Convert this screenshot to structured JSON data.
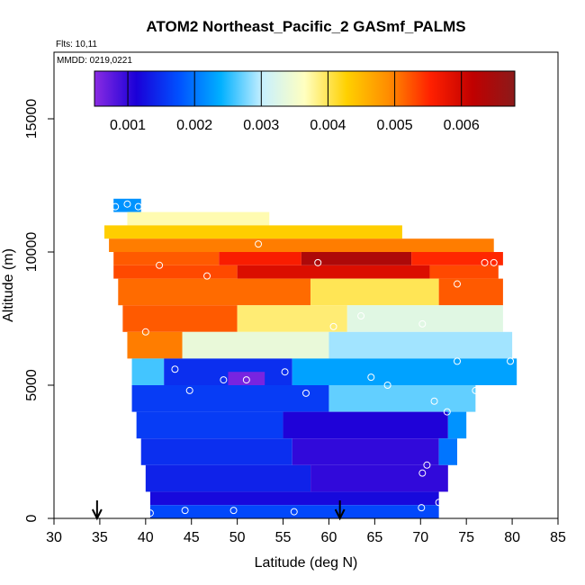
{
  "chart_data": {
    "type": "heatmap",
    "title": "ATOM2 Northeast_Pacific_2 GASmf_PALMS",
    "flights_label": "Flts: 10,11",
    "dates_label": "MMDD: 0219,0221",
    "xlabel": "Latitude (deg N)",
    "ylabel": "Altitude (m)",
    "xlim": [
      30,
      85
    ],
    "ylim": [
      0,
      17500
    ],
    "x_ticks": [
      30,
      35,
      40,
      45,
      50,
      55,
      60,
      65,
      70,
      75,
      80,
      85
    ],
    "y_ticks": [
      0,
      5000,
      10000,
      15000
    ],
    "colorbar": {
      "range": [
        0.0005,
        0.0068
      ],
      "ticks": [
        0.001,
        0.002,
        0.003,
        0.004,
        0.005,
        0.006
      ],
      "tick_labels": [
        "0.001",
        "0.002",
        "0.003",
        "0.004",
        "0.005",
        "0.006"
      ],
      "colors": [
        "#8a2be2",
        "#1a00d8",
        "#0050ff",
        "#00b0ff",
        "#c8f0ff",
        "#ffffc0",
        "#ffd000",
        "#ff8c00",
        "#ff2000",
        "#c00000",
        "#8b1a1a"
      ]
    },
    "arrows_x": [
      34.7,
      61.2
    ],
    "regions": [
      {
        "y": [
          11500,
          12000
        ],
        "x": [
          36.5,
          39.5
        ],
        "value": 0.0022
      },
      {
        "y": [
          11000,
          11500
        ],
        "x": [
          38.0,
          53.5
        ],
        "value": 0.0037
      },
      {
        "y": [
          10500,
          11000
        ],
        "x": [
          35.5,
          68.0
        ],
        "value": 0.0043
      },
      {
        "y": [
          10000,
          10500
        ],
        "x": [
          36.0,
          78.0
        ],
        "value": 0.005
      },
      {
        "y": [
          9500,
          10000
        ],
        "x": [
          36.5,
          48.0
        ],
        "value": 0.0052
      },
      {
        "y": [
          9500,
          10000
        ],
        "x": [
          48.0,
          57.0
        ],
        "value": 0.0056
      },
      {
        "y": [
          9500,
          10000
        ],
        "x": [
          57.0,
          69.0
        ],
        "value": 0.0064
      },
      {
        "y": [
          9500,
          10000
        ],
        "x": [
          69.0,
          79.0
        ],
        "value": 0.0055
      },
      {
        "y": [
          9000,
          9500
        ],
        "x": [
          36.5,
          50.0
        ],
        "value": 0.0053
      },
      {
        "y": [
          9000,
          9500
        ],
        "x": [
          50.0,
          71.0
        ],
        "value": 0.0059
      },
      {
        "y": [
          9000,
          9500
        ],
        "x": [
          71.0,
          78.5
        ],
        "value": 0.0053
      },
      {
        "y": [
          8000,
          9000
        ],
        "x": [
          37.0,
          58.0
        ],
        "value": 0.0051
      },
      {
        "y": [
          8000,
          9000
        ],
        "x": [
          58.0,
          72.0
        ],
        "value": 0.004
      },
      {
        "y": [
          8000,
          9000
        ],
        "x": [
          72.0,
          79.0
        ],
        "value": 0.0052
      },
      {
        "y": [
          7000,
          8000
        ],
        "x": [
          37.5,
          50.0
        ],
        "value": 0.0052
      },
      {
        "y": [
          7000,
          8000
        ],
        "x": [
          50.0,
          62.0
        ],
        "value": 0.0039
      },
      {
        "y": [
          7000,
          8000
        ],
        "x": [
          62.0,
          79.0
        ],
        "value": 0.0033
      },
      {
        "y": [
          6000,
          7000
        ],
        "x": [
          38.0,
          44.0
        ],
        "value": 0.005
      },
      {
        "y": [
          6000,
          7000
        ],
        "x": [
          44.0,
          60.0
        ],
        "value": 0.0034
      },
      {
        "y": [
          6000,
          7000
        ],
        "x": [
          60.0,
          80.0
        ],
        "value": 0.0029
      },
      {
        "y": [
          5000,
          6000
        ],
        "x": [
          38.5,
          42.0
        ],
        "value": 0.0026
      },
      {
        "y": [
          5000,
          6000
        ],
        "x": [
          42.0,
          56.0
        ],
        "value": 0.0015
      },
      {
        "y": [
          5000,
          6000
        ],
        "x": [
          56.0,
          80.5
        ],
        "value": 0.0023
      },
      {
        "y": [
          5000,
          5500
        ],
        "x": [
          49.0,
          53.0
        ],
        "value": 0.0006
      },
      {
        "y": [
          4000,
          5000
        ],
        "x": [
          38.5,
          60.0
        ],
        "value": 0.0016
      },
      {
        "y": [
          4000,
          5000
        ],
        "x": [
          60.0,
          76.0
        ],
        "value": 0.0027
      },
      {
        "y": [
          3000,
          4000
        ],
        "x": [
          39.0,
          55.0
        ],
        "value": 0.0016
      },
      {
        "y": [
          3000,
          4000
        ],
        "x": [
          55.0,
          73.0
        ],
        "value": 0.0011
      },
      {
        "y": [
          3000,
          4000
        ],
        "x": [
          73.0,
          75.0
        ],
        "value": 0.0022
      },
      {
        "y": [
          2000,
          3000
        ],
        "x": [
          39.5,
          56.0
        ],
        "value": 0.0015
      },
      {
        "y": [
          2000,
          3000
        ],
        "x": [
          56.0,
          72.0
        ],
        "value": 0.001
      },
      {
        "y": [
          2000,
          3000
        ],
        "x": [
          72.0,
          74.0
        ],
        "value": 0.002
      },
      {
        "y": [
          1000,
          2000
        ],
        "x": [
          40.0,
          58.0
        ],
        "value": 0.0014
      },
      {
        "y": [
          1000,
          2000
        ],
        "x": [
          58.0,
          73.0
        ],
        "value": 0.001
      },
      {
        "y": [
          500,
          1000
        ],
        "x": [
          40.5,
          72.0
        ],
        "value": 0.0012
      },
      {
        "y": [
          0,
          500
        ],
        "x": [
          40.5,
          72.0
        ],
        "value": 0.0017
      }
    ],
    "obs_points": [
      {
        "lat": 36.7,
        "alt": 11700
      },
      {
        "lat": 38.0,
        "alt": 11800
      },
      {
        "lat": 39.2,
        "alt": 11700
      },
      {
        "lat": 41.5,
        "alt": 9500
      },
      {
        "lat": 46.7,
        "alt": 9100
      },
      {
        "lat": 52.3,
        "alt": 10300
      },
      {
        "lat": 58.8,
        "alt": 9600
      },
      {
        "lat": 74.0,
        "alt": 8800
      },
      {
        "lat": 77.0,
        "alt": 9600
      },
      {
        "lat": 78.0,
        "alt": 9600
      },
      {
        "lat": 40.0,
        "alt": 7000
      },
      {
        "lat": 60.5,
        "alt": 7200
      },
      {
        "lat": 63.5,
        "alt": 7600
      },
      {
        "lat": 70.2,
        "alt": 7300
      },
      {
        "lat": 74.0,
        "alt": 5900
      },
      {
        "lat": 79.8,
        "alt": 5900
      },
      {
        "lat": 43.2,
        "alt": 5600
      },
      {
        "lat": 44.8,
        "alt": 4800
      },
      {
        "lat": 48.5,
        "alt": 5200
      },
      {
        "lat": 51.0,
        "alt": 5200
      },
      {
        "lat": 55.2,
        "alt": 5500
      },
      {
        "lat": 57.5,
        "alt": 4700
      },
      {
        "lat": 64.6,
        "alt": 5300
      },
      {
        "lat": 66.4,
        "alt": 5000
      },
      {
        "lat": 71.5,
        "alt": 4400
      },
      {
        "lat": 72.9,
        "alt": 4000
      },
      {
        "lat": 76.0,
        "alt": 4800
      },
      {
        "lat": 70.7,
        "alt": 2000
      },
      {
        "lat": 70.2,
        "alt": 1700
      },
      {
        "lat": 70.1,
        "alt": 400
      },
      {
        "lat": 72.0,
        "alt": 600
      },
      {
        "lat": 40.5,
        "alt": 200
      },
      {
        "lat": 44.3,
        "alt": 300
      },
      {
        "lat": 49.6,
        "alt": 300
      },
      {
        "lat": 56.2,
        "alt": 250
      }
    ]
  }
}
